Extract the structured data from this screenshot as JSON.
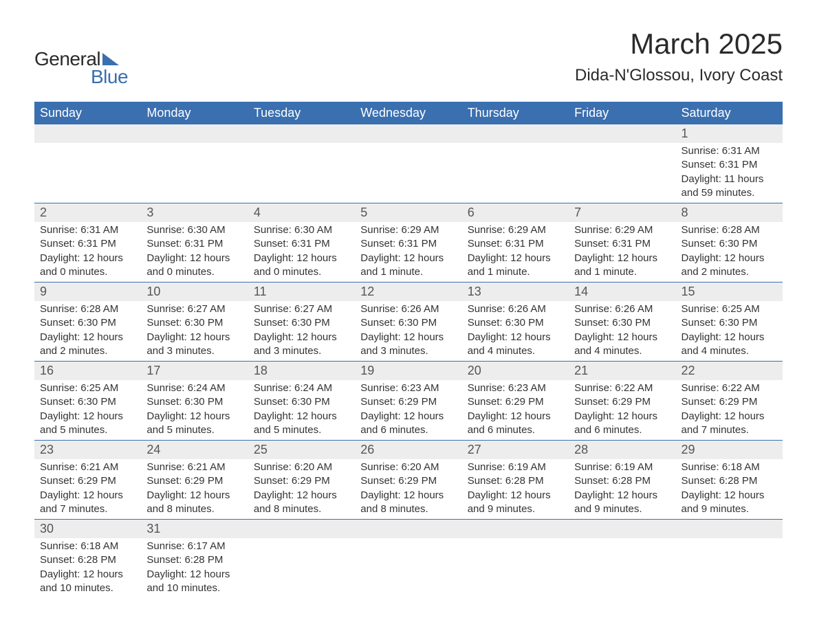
{
  "logo": {
    "text1": "General",
    "text2": "Blue"
  },
  "title": "March 2025",
  "location": "Dida-N'Glossou, Ivory Coast",
  "colors": {
    "header_bg": "#3a6fb0",
    "header_text": "#ffffff",
    "daynum_bg": "#ededed",
    "border": "#3a6fb0",
    "text": "#333333",
    "logo_dark": "#2a2a2a",
    "logo_blue": "#3a6fb0",
    "page_bg": "#ffffff"
  },
  "typography": {
    "title_fontsize": 42,
    "location_fontsize": 24,
    "header_fontsize": 18,
    "daynum_fontsize": 18,
    "cell_fontsize": 15,
    "logo_fontsize": 28
  },
  "dayHeaders": [
    "Sunday",
    "Monday",
    "Tuesday",
    "Wednesday",
    "Thursday",
    "Friday",
    "Saturday"
  ],
  "weeks": [
    [
      {
        "num": "",
        "sunrise": "",
        "sunset": "",
        "daylight": ""
      },
      {
        "num": "",
        "sunrise": "",
        "sunset": "",
        "daylight": ""
      },
      {
        "num": "",
        "sunrise": "",
        "sunset": "",
        "daylight": ""
      },
      {
        "num": "",
        "sunrise": "",
        "sunset": "",
        "daylight": ""
      },
      {
        "num": "",
        "sunrise": "",
        "sunset": "",
        "daylight": ""
      },
      {
        "num": "",
        "sunrise": "",
        "sunset": "",
        "daylight": ""
      },
      {
        "num": "1",
        "sunrise": "Sunrise: 6:31 AM",
        "sunset": "Sunset: 6:31 PM",
        "daylight": "Daylight: 11 hours and 59 minutes."
      }
    ],
    [
      {
        "num": "2",
        "sunrise": "Sunrise: 6:31 AM",
        "sunset": "Sunset: 6:31 PM",
        "daylight": "Daylight: 12 hours and 0 minutes."
      },
      {
        "num": "3",
        "sunrise": "Sunrise: 6:30 AM",
        "sunset": "Sunset: 6:31 PM",
        "daylight": "Daylight: 12 hours and 0 minutes."
      },
      {
        "num": "4",
        "sunrise": "Sunrise: 6:30 AM",
        "sunset": "Sunset: 6:31 PM",
        "daylight": "Daylight: 12 hours and 0 minutes."
      },
      {
        "num": "5",
        "sunrise": "Sunrise: 6:29 AM",
        "sunset": "Sunset: 6:31 PM",
        "daylight": "Daylight: 12 hours and 1 minute."
      },
      {
        "num": "6",
        "sunrise": "Sunrise: 6:29 AM",
        "sunset": "Sunset: 6:31 PM",
        "daylight": "Daylight: 12 hours and 1 minute."
      },
      {
        "num": "7",
        "sunrise": "Sunrise: 6:29 AM",
        "sunset": "Sunset: 6:31 PM",
        "daylight": "Daylight: 12 hours and 1 minute."
      },
      {
        "num": "8",
        "sunrise": "Sunrise: 6:28 AM",
        "sunset": "Sunset: 6:30 PM",
        "daylight": "Daylight: 12 hours and 2 minutes."
      }
    ],
    [
      {
        "num": "9",
        "sunrise": "Sunrise: 6:28 AM",
        "sunset": "Sunset: 6:30 PM",
        "daylight": "Daylight: 12 hours and 2 minutes."
      },
      {
        "num": "10",
        "sunrise": "Sunrise: 6:27 AM",
        "sunset": "Sunset: 6:30 PM",
        "daylight": "Daylight: 12 hours and 3 minutes."
      },
      {
        "num": "11",
        "sunrise": "Sunrise: 6:27 AM",
        "sunset": "Sunset: 6:30 PM",
        "daylight": "Daylight: 12 hours and 3 minutes."
      },
      {
        "num": "12",
        "sunrise": "Sunrise: 6:26 AM",
        "sunset": "Sunset: 6:30 PM",
        "daylight": "Daylight: 12 hours and 3 minutes."
      },
      {
        "num": "13",
        "sunrise": "Sunrise: 6:26 AM",
        "sunset": "Sunset: 6:30 PM",
        "daylight": "Daylight: 12 hours and 4 minutes."
      },
      {
        "num": "14",
        "sunrise": "Sunrise: 6:26 AM",
        "sunset": "Sunset: 6:30 PM",
        "daylight": "Daylight: 12 hours and 4 minutes."
      },
      {
        "num": "15",
        "sunrise": "Sunrise: 6:25 AM",
        "sunset": "Sunset: 6:30 PM",
        "daylight": "Daylight: 12 hours and 4 minutes."
      }
    ],
    [
      {
        "num": "16",
        "sunrise": "Sunrise: 6:25 AM",
        "sunset": "Sunset: 6:30 PM",
        "daylight": "Daylight: 12 hours and 5 minutes."
      },
      {
        "num": "17",
        "sunrise": "Sunrise: 6:24 AM",
        "sunset": "Sunset: 6:30 PM",
        "daylight": "Daylight: 12 hours and 5 minutes."
      },
      {
        "num": "18",
        "sunrise": "Sunrise: 6:24 AM",
        "sunset": "Sunset: 6:30 PM",
        "daylight": "Daylight: 12 hours and 5 minutes."
      },
      {
        "num": "19",
        "sunrise": "Sunrise: 6:23 AM",
        "sunset": "Sunset: 6:29 PM",
        "daylight": "Daylight: 12 hours and 6 minutes."
      },
      {
        "num": "20",
        "sunrise": "Sunrise: 6:23 AM",
        "sunset": "Sunset: 6:29 PM",
        "daylight": "Daylight: 12 hours and 6 minutes."
      },
      {
        "num": "21",
        "sunrise": "Sunrise: 6:22 AM",
        "sunset": "Sunset: 6:29 PM",
        "daylight": "Daylight: 12 hours and 6 minutes."
      },
      {
        "num": "22",
        "sunrise": "Sunrise: 6:22 AM",
        "sunset": "Sunset: 6:29 PM",
        "daylight": "Daylight: 12 hours and 7 minutes."
      }
    ],
    [
      {
        "num": "23",
        "sunrise": "Sunrise: 6:21 AM",
        "sunset": "Sunset: 6:29 PM",
        "daylight": "Daylight: 12 hours and 7 minutes."
      },
      {
        "num": "24",
        "sunrise": "Sunrise: 6:21 AM",
        "sunset": "Sunset: 6:29 PM",
        "daylight": "Daylight: 12 hours and 8 minutes."
      },
      {
        "num": "25",
        "sunrise": "Sunrise: 6:20 AM",
        "sunset": "Sunset: 6:29 PM",
        "daylight": "Daylight: 12 hours and 8 minutes."
      },
      {
        "num": "26",
        "sunrise": "Sunrise: 6:20 AM",
        "sunset": "Sunset: 6:29 PM",
        "daylight": "Daylight: 12 hours and 8 minutes."
      },
      {
        "num": "27",
        "sunrise": "Sunrise: 6:19 AM",
        "sunset": "Sunset: 6:28 PM",
        "daylight": "Daylight: 12 hours and 9 minutes."
      },
      {
        "num": "28",
        "sunrise": "Sunrise: 6:19 AM",
        "sunset": "Sunset: 6:28 PM",
        "daylight": "Daylight: 12 hours and 9 minutes."
      },
      {
        "num": "29",
        "sunrise": "Sunrise: 6:18 AM",
        "sunset": "Sunset: 6:28 PM",
        "daylight": "Daylight: 12 hours and 9 minutes."
      }
    ],
    [
      {
        "num": "30",
        "sunrise": "Sunrise: 6:18 AM",
        "sunset": "Sunset: 6:28 PM",
        "daylight": "Daylight: 12 hours and 10 minutes."
      },
      {
        "num": "31",
        "sunrise": "Sunrise: 6:17 AM",
        "sunset": "Sunset: 6:28 PM",
        "daylight": "Daylight: 12 hours and 10 minutes."
      },
      {
        "num": "",
        "sunrise": "",
        "sunset": "",
        "daylight": ""
      },
      {
        "num": "",
        "sunrise": "",
        "sunset": "",
        "daylight": ""
      },
      {
        "num": "",
        "sunrise": "",
        "sunset": "",
        "daylight": ""
      },
      {
        "num": "",
        "sunrise": "",
        "sunset": "",
        "daylight": ""
      },
      {
        "num": "",
        "sunrise": "",
        "sunset": "",
        "daylight": ""
      }
    ]
  ]
}
